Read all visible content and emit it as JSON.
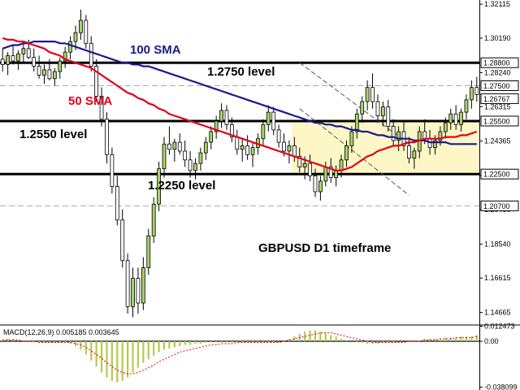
{
  "chart_data": {
    "type": "candlestick",
    "title": "GBPUSD D1 timeframe",
    "instrument": "GBPUSD",
    "timeframe": "D1",
    "y_axis": {
      "ticks": [
        "1.32115",
        "1.30190",
        "1.28240",
        "1.26315",
        "1.24365",
        "1.22440",
        "1.20490",
        "1.18540",
        "1.16615",
        "1.14665"
      ],
      "ylim": [
        1.1405,
        1.3235
      ]
    },
    "price_tags": [
      {
        "label": "1.28800",
        "style": "box"
      },
      {
        "label": "1.27500",
        "style": "box"
      },
      {
        "label": "1.26767",
        "style": "box"
      },
      {
        "label": "1.25500",
        "style": "box"
      },
      {
        "label": "1.22500",
        "style": "box"
      },
      {
        "label": "1.20700",
        "style": "box"
      }
    ],
    "levels": [
      {
        "price": 1.288,
        "style": "solid"
      },
      {
        "price": 1.275,
        "style": "dashed"
      },
      {
        "price": 1.255,
        "style": "solid"
      },
      {
        "price": 1.225,
        "style": "solid"
      },
      {
        "price": 1.207,
        "style": "dashed"
      }
    ],
    "annotations": [
      {
        "text": "100 SMA",
        "color": "#1a1a8c"
      },
      {
        "text": "50 SMA",
        "color": "#e3001b"
      },
      {
        "text": "1.2750 level",
        "color": "#000000"
      },
      {
        "text": "1.2550 level",
        "color": "#000000"
      },
      {
        "text": "1.2250 level",
        "color": "#000000"
      },
      {
        "text": "GBPUSD D1 timeframe",
        "color": "#000000"
      }
    ],
    "candles": [
      [
        1.29,
        1.296,
        1.283,
        1.287
      ],
      [
        1.287,
        1.294,
        1.281,
        1.292
      ],
      [
        1.292,
        1.298,
        1.287,
        1.289
      ],
      [
        1.289,
        1.295,
        1.284,
        1.293
      ],
      [
        1.293,
        1.3,
        1.288,
        1.296
      ],
      [
        1.296,
        1.301,
        1.29,
        1.291
      ],
      [
        1.291,
        1.296,
        1.283,
        1.286
      ],
      [
        1.286,
        1.292,
        1.279,
        1.281
      ],
      [
        1.281,
        1.287,
        1.276,
        1.284
      ],
      [
        1.284,
        1.29,
        1.278,
        1.279
      ],
      [
        1.279,
        1.285,
        1.275,
        1.283
      ],
      [
        1.283,
        1.291,
        1.279,
        1.289
      ],
      [
        1.289,
        1.297,
        1.285,
        1.294
      ],
      [
        1.294,
        1.303,
        1.29,
        1.3
      ],
      [
        1.3,
        1.309,
        1.295,
        1.305
      ],
      [
        1.305,
        1.318,
        1.301,
        1.312
      ],
      [
        1.312,
        1.315,
        1.296,
        1.299
      ],
      [
        1.299,
        1.303,
        1.283,
        1.286
      ],
      [
        1.286,
        1.29,
        1.266,
        1.269
      ],
      [
        1.269,
        1.274,
        1.252,
        1.256
      ],
      [
        1.256,
        1.26,
        1.231,
        1.236
      ],
      [
        1.236,
        1.24,
        1.214,
        1.218
      ],
      [
        1.218,
        1.224,
        1.196,
        1.199
      ],
      [
        1.199,
        1.205,
        1.172,
        1.176
      ],
      [
        1.176,
        1.18,
        1.146,
        1.15
      ],
      [
        1.15,
        1.172,
        1.144,
        1.166
      ],
      [
        1.166,
        1.172,
        1.146,
        1.152
      ],
      [
        1.152,
        1.178,
        1.148,
        1.172
      ],
      [
        1.172,
        1.194,
        1.168,
        1.19
      ],
      [
        1.19,
        1.212,
        1.186,
        1.208
      ],
      [
        1.208,
        1.232,
        1.204,
        1.228
      ],
      [
        1.228,
        1.246,
        1.223,
        1.242
      ],
      [
        1.242,
        1.252,
        1.236,
        1.239
      ],
      [
        1.239,
        1.245,
        1.232,
        1.243
      ],
      [
        1.243,
        1.248,
        1.236,
        1.238
      ],
      [
        1.238,
        1.244,
        1.229,
        1.233
      ],
      [
        1.233,
        1.238,
        1.223,
        1.227
      ],
      [
        1.227,
        1.234,
        1.222,
        1.231
      ],
      [
        1.231,
        1.24,
        1.227,
        1.237
      ],
      [
        1.237,
        1.246,
        1.233,
        1.243
      ],
      [
        1.243,
        1.252,
        1.239,
        1.249
      ],
      [
        1.249,
        1.258,
        1.245,
        1.255
      ],
      [
        1.255,
        1.265,
        1.251,
        1.261
      ],
      [
        1.261,
        1.264,
        1.25,
        1.253
      ],
      [
        1.253,
        1.257,
        1.243,
        1.246
      ],
      [
        1.246,
        1.25,
        1.236,
        1.239
      ],
      [
        1.239,
        1.245,
        1.232,
        1.241
      ],
      [
        1.241,
        1.247,
        1.233,
        1.236
      ],
      [
        1.236,
        1.243,
        1.229,
        1.24
      ],
      [
        1.24,
        1.248,
        1.236,
        1.245
      ],
      [
        1.245,
        1.256,
        1.241,
        1.253
      ],
      [
        1.253,
        1.264,
        1.249,
        1.26
      ],
      [
        1.26,
        1.263,
        1.247,
        1.25
      ],
      [
        1.25,
        1.253,
        1.24,
        1.243
      ],
      [
        1.243,
        1.248,
        1.235,
        1.238
      ],
      [
        1.238,
        1.244,
        1.231,
        1.241
      ],
      [
        1.241,
        1.246,
        1.232,
        1.235
      ],
      [
        1.235,
        1.24,
        1.226,
        1.229
      ],
      [
        1.229,
        1.235,
        1.222,
        1.231
      ],
      [
        1.231,
        1.236,
        1.221,
        1.224
      ],
      [
        1.224,
        1.228,
        1.212,
        1.215
      ],
      [
        1.215,
        1.224,
        1.21,
        1.221
      ],
      [
        1.221,
        1.232,
        1.218,
        1.229
      ],
      [
        1.229,
        1.234,
        1.22,
        1.223
      ],
      [
        1.223,
        1.23,
        1.218,
        1.227
      ],
      [
        1.227,
        1.236,
        1.223,
        1.233
      ],
      [
        1.233,
        1.244,
        1.229,
        1.241
      ],
      [
        1.241,
        1.252,
        1.237,
        1.249
      ],
      [
        1.249,
        1.262,
        1.245,
        1.259
      ],
      [
        1.259,
        1.269,
        1.254,
        1.266
      ],
      [
        1.266,
        1.278,
        1.261,
        1.274
      ],
      [
        1.274,
        1.282,
        1.262,
        1.266
      ],
      [
        1.266,
        1.27,
        1.254,
        1.258
      ],
      [
        1.258,
        1.266,
        1.252,
        1.263
      ],
      [
        1.263,
        1.267,
        1.249,
        1.252
      ],
      [
        1.252,
        1.256,
        1.241,
        1.244
      ],
      [
        1.244,
        1.252,
        1.238,
        1.249
      ],
      [
        1.249,
        1.255,
        1.238,
        1.241
      ],
      [
        1.241,
        1.246,
        1.231,
        1.234
      ],
      [
        1.234,
        1.24,
        1.228,
        1.238
      ],
      [
        1.238,
        1.252,
        1.234,
        1.249
      ],
      [
        1.249,
        1.256,
        1.242,
        1.245
      ],
      [
        1.245,
        1.25,
        1.236,
        1.24
      ],
      [
        1.24,
        1.247,
        1.236,
        1.244
      ],
      [
        1.244,
        1.252,
        1.241,
        1.249
      ],
      [
        1.249,
        1.257,
        1.245,
        1.254
      ],
      [
        1.254,
        1.262,
        1.25,
        1.259
      ],
      [
        1.259,
        1.264,
        1.25,
        1.253
      ],
      [
        1.253,
        1.262,
        1.249,
        1.26
      ],
      [
        1.26,
        1.27,
        1.256,
        1.267
      ],
      [
        1.267,
        1.278,
        1.262,
        1.274
      ],
      [
        1.274,
        1.28,
        1.266,
        1.27
      ]
    ],
    "sma50": [
      1.302,
      1.301,
      1.301,
      1.3,
      1.3,
      1.299,
      1.298,
      1.297,
      1.296,
      1.294,
      1.293,
      1.292,
      1.29,
      1.289,
      1.288,
      1.287,
      1.286,
      1.285,
      1.283,
      1.281,
      1.279,
      1.277,
      1.275,
      1.273,
      1.271,
      1.27,
      1.268,
      1.267,
      1.265,
      1.264,
      1.262,
      1.261,
      1.259,
      1.258,
      1.257,
      1.256,
      1.255,
      1.254,
      1.253,
      1.252,
      1.251,
      1.25,
      1.249,
      1.248,
      1.247,
      1.246,
      1.245,
      1.244,
      1.243,
      1.242,
      1.241,
      1.24,
      1.239,
      1.238,
      1.237,
      1.236,
      1.235,
      1.234,
      1.233,
      1.232,
      1.231,
      1.23,
      1.229,
      1.228,
      1.227,
      1.227,
      1.228,
      1.229,
      1.231,
      1.233,
      1.235,
      1.236,
      1.238,
      1.239,
      1.24,
      1.241,
      1.241,
      1.242,
      1.243,
      1.243,
      1.244,
      1.245,
      1.245,
      1.245,
      1.245,
      1.246,
      1.246,
      1.246,
      1.247,
      1.247,
      1.248,
      1.249
    ],
    "sma100": [
      1.296,
      1.297,
      1.298,
      1.298,
      1.299,
      1.299,
      1.3,
      1.3,
      1.3,
      1.3,
      1.3,
      1.299,
      1.299,
      1.298,
      1.297,
      1.296,
      1.295,
      1.294,
      1.293,
      1.292,
      1.291,
      1.29,
      1.289,
      1.288,
      1.288,
      1.287,
      1.287,
      1.286,
      1.286,
      1.285,
      1.284,
      1.283,
      1.282,
      1.281,
      1.28,
      1.279,
      1.278,
      1.277,
      1.276,
      1.275,
      1.274,
      1.273,
      1.272,
      1.271,
      1.27,
      1.269,
      1.268,
      1.267,
      1.266,
      1.265,
      1.264,
      1.263,
      1.262,
      1.261,
      1.26,
      1.259,
      1.258,
      1.257,
      1.256,
      1.255,
      1.254,
      1.254,
      1.253,
      1.253,
      1.252,
      1.252,
      1.251,
      1.25,
      1.25,
      1.249,
      1.249,
      1.248,
      1.247,
      1.247,
      1.246,
      1.246,
      1.245,
      1.245,
      1.245,
      1.244,
      1.244,
      1.244,
      1.243,
      1.243,
      1.243,
      1.243,
      1.242,
      1.242,
      1.242,
      1.242,
      1.242,
      1.242
    ],
    "consolidation_zone": {
      "x_from": 56,
      "x_to": 91,
      "y_from": 1.225,
      "y_to": 1.255
    },
    "channel": {
      "upper": [
        [
          57,
          1.288
        ],
        [
          78,
          1.242
        ]
      ],
      "lower": [
        [
          57,
          1.262
        ],
        [
          78,
          1.213
        ]
      ]
    },
    "macd": {
      "label": "MACD(12,26,9) 0.005185 0.003645",
      "ticks": [
        "0.012473",
        "0.00",
        "-0.038099"
      ],
      "ylim": [
        -0.0405,
        0.0135
      ],
      "histogram": [
        0.001,
        0.002,
        0.002,
        0.001,
        0.001,
        0.0,
        -0.001,
        -0.001,
        -0.001,
        -0.001,
        -0.001,
        -0.001,
        -0.001,
        -0.002,
        -0.004,
        -0.007,
        -0.011,
        -0.016,
        -0.021,
        -0.026,
        -0.03,
        -0.033,
        -0.034,
        -0.033,
        -0.03,
        -0.026,
        -0.022,
        -0.018,
        -0.015,
        -0.012,
        -0.009,
        -0.007,
        -0.006,
        -0.005,
        -0.004,
        -0.003,
        -0.003,
        -0.002,
        -0.002,
        -0.001,
        -0.001,
        -0.001,
        -0.001,
        -0.001,
        -0.001,
        -0.001,
        -0.001,
        -0.001,
        -0.001,
        -0.001,
        -0.001,
        -0.001,
        -0.001,
        0.0,
        0.001,
        0.002,
        0.004,
        0.006,
        0.008,
        0.009,
        0.009,
        0.008,
        0.007,
        0.005,
        0.004,
        0.002,
        0.001,
        0.0,
        -0.001,
        -0.001,
        -0.002,
        -0.002,
        -0.002,
        -0.001,
        -0.001,
        -0.001,
        0.0,
        0.0,
        0.001,
        0.001,
        0.001,
        0.002,
        0.002,
        0.002,
        0.002,
        0.003,
        0.003,
        0.003,
        0.004,
        0.004,
        0.004,
        0.005
      ],
      "signal": [
        0.001,
        0.001,
        0.001,
        0.001,
        0.0,
        0.0,
        0.0,
        -0.001,
        -0.001,
        -0.001,
        -0.001,
        -0.001,
        -0.001,
        -0.001,
        -0.002,
        -0.003,
        -0.005,
        -0.008,
        -0.011,
        -0.014,
        -0.018,
        -0.021,
        -0.024,
        -0.026,
        -0.027,
        -0.027,
        -0.026,
        -0.024,
        -0.022,
        -0.02,
        -0.017,
        -0.015,
        -0.013,
        -0.011,
        -0.009,
        -0.008,
        -0.007,
        -0.006,
        -0.005,
        -0.004,
        -0.003,
        -0.003,
        -0.002,
        -0.002,
        -0.002,
        -0.001,
        -0.001,
        -0.001,
        -0.001,
        -0.001,
        -0.001,
        -0.001,
        -0.001,
        -0.001,
        0.0,
        0.001,
        0.002,
        0.003,
        0.004,
        0.005,
        0.006,
        0.007,
        0.007,
        0.007,
        0.006,
        0.005,
        0.004,
        0.003,
        0.002,
        0.001,
        0.0,
        -0.001,
        -0.001,
        -0.001,
        -0.001,
        -0.001,
        -0.001,
        -0.001,
        0.0,
        0.0,
        0.0,
        0.001,
        0.001,
        0.001,
        0.002,
        0.002,
        0.002,
        0.003,
        0.003,
        0.003,
        0.003,
        0.004
      ]
    },
    "colors": {
      "bull_body": "#a8d36a",
      "bear_body": "#ffffff",
      "candle_outline": "#000000",
      "sma50": "#e3001b",
      "sma100": "#1a1a8c",
      "zone": "#fdf7c8",
      "macd_hist": "#b4c94d",
      "macd_signal": "#e3001b",
      "grid": "#aaaaaa"
    }
  }
}
